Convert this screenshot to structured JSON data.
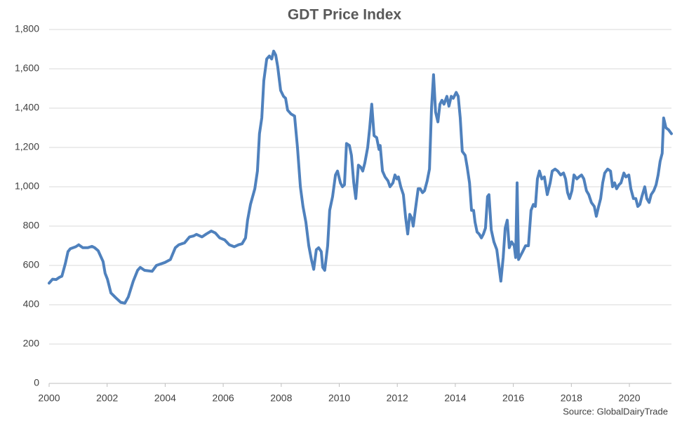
{
  "chart_data": {
    "type": "line",
    "title": "GDT Price Index",
    "source": "Source: GlobalDairyTrade",
    "xlim": [
      2000,
      2021.45
    ],
    "xticks": [
      2000,
      2002,
      2004,
      2006,
      2008,
      2010,
      2012,
      2014,
      2016,
      2018,
      2020
    ],
    "ylim": [
      0,
      1800
    ],
    "yticks": [
      0,
      200,
      400,
      600,
      800,
      {
        "value": 1000,
        "label": "1,000"
      },
      {
        "value": 1200,
        "label": "1,200"
      },
      {
        "value": 1400,
        "label": "1,400"
      },
      {
        "value": 1600,
        "label": "1,600"
      },
      {
        "value": 1800,
        "label": "1,800"
      }
    ],
    "grid": true,
    "series": [
      {
        "color": "#4f81bd",
        "x": [
          2000.0,
          2000.12,
          2000.24,
          2000.36,
          2000.44,
          2000.56,
          2000.65,
          2000.73,
          2000.92,
          2001.02,
          2001.16,
          2001.33,
          2001.48,
          2001.57,
          2001.69,
          2001.86,
          2001.93,
          2002.01,
          2002.13,
          2002.3,
          2002.47,
          2002.61,
          2002.73,
          2002.9,
          2003.05,
          2003.14,
          2003.29,
          2003.55,
          2003.7,
          2003.99,
          2004.18,
          2004.35,
          2004.47,
          2004.67,
          2004.84,
          2004.98,
          2005.08,
          2005.27,
          2005.42,
          2005.59,
          2005.73,
          2005.88,
          2006.05,
          2006.21,
          2006.38,
          2006.53,
          2006.65,
          2006.77,
          2006.84,
          2006.94,
          2007.09,
          2007.18,
          2007.25,
          2007.33,
          2007.4,
          2007.5,
          2007.59,
          2007.67,
          2007.74,
          2007.81,
          2007.88,
          2007.98,
          2008.08,
          2008.15,
          2008.22,
          2008.34,
          2008.46,
          2008.56,
          2008.66,
          2008.75,
          2008.85,
          2008.95,
          2009.04,
          2009.12,
          2009.21,
          2009.29,
          2009.38,
          2009.43,
          2009.5,
          2009.6,
          2009.67,
          2009.77,
          2009.87,
          2009.94,
          2010.04,
          2010.11,
          2010.18,
          2010.25,
          2010.35,
          2010.42,
          2010.5,
          2010.57,
          2010.66,
          2010.74,
          2010.81,
          2010.88,
          2010.98,
          2011.05,
          2011.12,
          2011.2,
          2011.29,
          2011.37,
          2011.41,
          2011.49,
          2011.58,
          2011.68,
          2011.75,
          2011.85,
          2011.92,
          2011.99,
          2012.04,
          2012.12,
          2012.21,
          2012.29,
          2012.36,
          2012.43,
          2012.5,
          2012.55,
          2012.62,
          2012.72,
          2012.79,
          2012.87,
          2012.94,
          2013.03,
          2013.11,
          2013.18,
          2013.25,
          2013.32,
          2013.4,
          2013.47,
          2013.54,
          2013.61,
          2013.71,
          2013.78,
          2013.86,
          2013.93,
          2014.03,
          2014.1,
          2014.17,
          2014.24,
          2014.34,
          2014.41,
          2014.49,
          2014.56,
          2014.63,
          2014.68,
          2014.75,
          2014.82,
          2014.9,
          2014.97,
          2015.04,
          2015.11,
          2015.16,
          2015.24,
          2015.33,
          2015.43,
          2015.5,
          2015.57,
          2015.65,
          2015.72,
          2015.79,
          2015.86,
          2015.94,
          2016.03,
          2016.08,
          2016.13,
          2016.18,
          2016.25,
          2016.32,
          2016.42,
          2016.52,
          2016.61,
          2016.69,
          2016.76,
          2016.83,
          2016.9,
          2016.98,
          2017.07,
          2017.17,
          2017.27,
          2017.34,
          2017.44,
          2017.53,
          2017.63,
          2017.73,
          2017.8,
          2017.87,
          2017.94,
          2018.02,
          2018.09,
          2018.19,
          2018.26,
          2018.35,
          2018.43,
          2018.52,
          2018.6,
          2018.69,
          2018.79,
          2018.86,
          2018.94,
          2019.01,
          2019.08,
          2019.15,
          2019.25,
          2019.35,
          2019.42,
          2019.49,
          2019.56,
          2019.64,
          2019.71,
          2019.81,
          2019.88,
          2019.98,
          2020.05,
          2020.14,
          2020.22,
          2020.29,
          2020.36,
          2020.43,
          2020.53,
          2020.6,
          2020.68,
          2020.75,
          2020.84,
          2020.92,
          2020.99,
          2021.06,
          2021.13,
          2021.18,
          2021.26,
          2021.35,
          2021.45
        ],
        "values": [
          510,
          530,
          528,
          540,
          545,
          610,
          670,
          685,
          695,
          705,
          690,
          690,
          697,
          690,
          675,
          620,
          560,
          530,
          460,
          435,
          412,
          408,
          440,
          520,
          575,
          590,
          575,
          570,
          600,
          615,
          630,
          690,
          705,
          715,
          745,
          750,
          758,
          745,
          760,
          775,
          765,
          740,
          730,
          705,
          695,
          705,
          710,
          740,
          830,
          910,
          990,
          1080,
          1270,
          1350,
          1540,
          1650,
          1665,
          1650,
          1690,
          1670,
          1610,
          1490,
          1460,
          1450,
          1390,
          1370,
          1360,
          1200,
          1000,
          900,
          820,
          700,
          630,
          580,
          680,
          690,
          670,
          590,
          575,
          700,
          880,
          950,
          1060,
          1080,
          1020,
          1000,
          1010,
          1220,
          1210,
          1160,
          1020,
          940,
          1110,
          1100,
          1080,
          1120,
          1200,
          1300,
          1420,
          1260,
          1250,
          1190,
          1210,
          1080,
          1050,
          1030,
          1000,
          1020,
          1060,
          1040,
          1050,
          1000,
          960,
          840,
          760,
          860,
          840,
          800,
          880,
          990,
          990,
          970,
          980,
          1030,
          1090,
          1400,
          1570,
          1380,
          1330,
          1420,
          1440,
          1420,
          1460,
          1410,
          1460,
          1450,
          1480,
          1460,
          1350,
          1180,
          1160,
          1100,
          1020,
          880,
          880,
          820,
          770,
          760,
          740,
          760,
          790,
          950,
          960,
          780,
          720,
          680,
          600,
          520,
          640,
          790,
          830,
          690,
          720,
          700,
          640,
          1020,
          630,
          650,
          670,
          700,
          700,
          880,
          910,
          900,
          1040,
          1080,
          1040,
          1050,
          960,
          1020,
          1080,
          1090,
          1080,
          1060,
          1070,
          1040,
          970,
          940,
          980,
          1060,
          1040,
          1050,
          1060,
          1040,
          980,
          960,
          920,
          900,
          850,
          900,
          940,
          1020,
          1070,
          1090,
          1080,
          1000,
          1020,
          990,
          1010,
          1020,
          1070,
          1050,
          1060,
          990,
          940,
          940,
          900,
          910,
          950,
          1000,
          940,
          920,
          960,
          980,
          1010,
          1060,
          1130,
          1170,
          1350,
          1300,
          1290,
          1270
        ]
      }
    ]
  }
}
